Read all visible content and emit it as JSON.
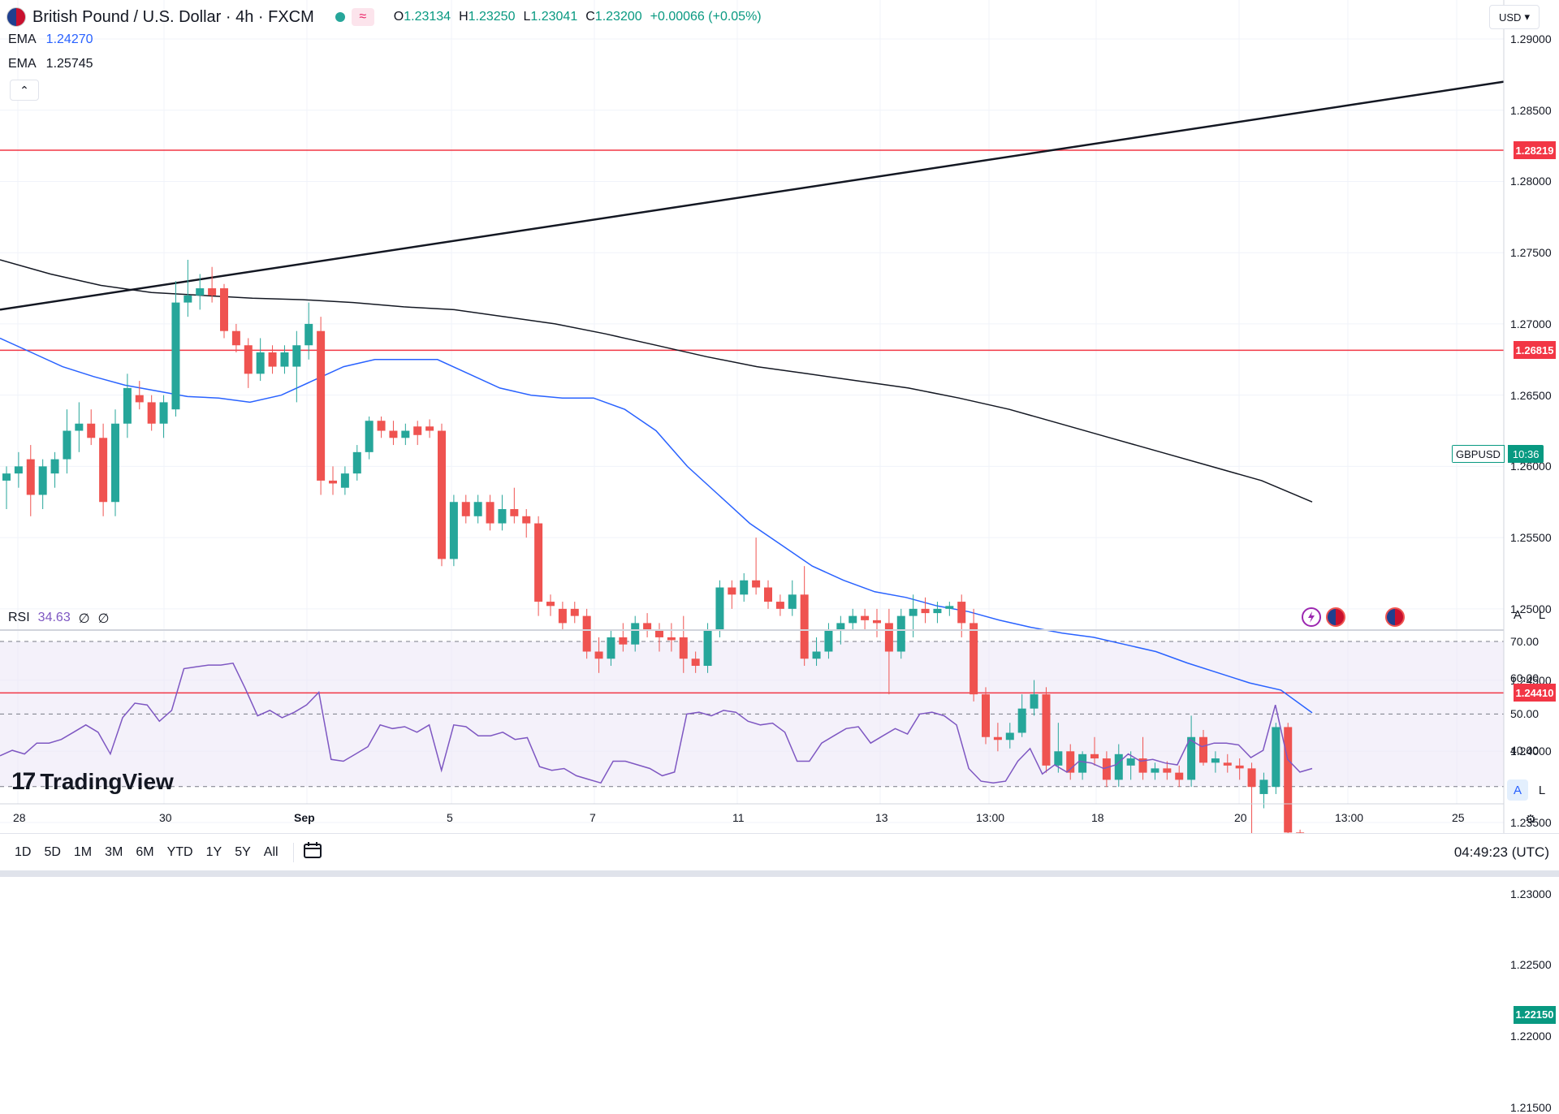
{
  "header": {
    "symbol_title": "British Pound / U.S. Dollar · 4h · FXCM",
    "open_label": "O",
    "open": "1.23134",
    "high_label": "H",
    "high": "1.23250",
    "low_label": "L",
    "low": "1.23041",
    "close_label": "C",
    "close": "1.23200",
    "change": "+0.00066 (+0.05%)"
  },
  "indicators": {
    "ema1_label": "EMA",
    "ema1_value": "1.24270",
    "ema2_label": "EMA",
    "ema2_value": "1.25745",
    "rsi_label": "RSI",
    "rsi_value": "34.63",
    "rsi_extra1": "∅",
    "rsi_extra2": "∅"
  },
  "currency_button": "USD",
  "symbol_tag": {
    "name": "GBPUSD",
    "countdown": "10:36"
  },
  "price_axis": {
    "ticks": [
      "1.29000",
      "1.28500",
      "1.28000",
      "1.27500",
      "1.27000",
      "1.26500",
      "1.26000",
      "1.25500",
      "1.25000",
      "1.24500",
      "1.24000",
      "1.23500",
      "1.23000",
      "1.22500",
      "1.22000",
      "1.21500"
    ]
  },
  "rsi_axis": {
    "ticks": [
      "70.00",
      "60.00",
      "50.00",
      "40.00"
    ]
  },
  "time_axis": {
    "labels": [
      "28",
      "30",
      "Sep",
      "5",
      "7",
      "11",
      "13",
      "13:00",
      "18",
      "20",
      "13:00",
      "25"
    ]
  },
  "level_labels": [
    "1.28219",
    "1.26815",
    "1.24410",
    "1.22150"
  ],
  "scale_buttons": {
    "auto": "A",
    "log": "L"
  },
  "range_buttons": [
    "1D",
    "5D",
    "1M",
    "3M",
    "6M",
    "YTD",
    "1Y",
    "5Y",
    "All"
  ],
  "clock": "04:49:23 (UTC)",
  "branding": "TradingView",
  "colors": {
    "up": "#26a69a",
    "down": "#ef5350",
    "ema_fast": "#2962ff",
    "ema_slow": "#131722",
    "level_red": "#f23645",
    "level_green": "#089981",
    "rsi": "#7e57c2",
    "rsi_bg": "#ede7f6"
  },
  "chart_data": {
    "type": "candlestick",
    "symbol": "GBPUSD",
    "timeframe": "4h",
    "ylim": [
      1.2115,
      1.2915
    ],
    "candles": [
      [
        1.259,
        1.26,
        1.257,
        1.2595
      ],
      [
        1.2595,
        1.261,
        1.2585,
        1.26
      ],
      [
        1.2605,
        1.2615,
        1.2565,
        1.258
      ],
      [
        1.258,
        1.2605,
        1.257,
        1.26
      ],
      [
        1.2595,
        1.261,
        1.2585,
        1.2605
      ],
      [
        1.2605,
        1.264,
        1.2595,
        1.2625
      ],
      [
        1.2625,
        1.2645,
        1.261,
        1.263
      ],
      [
        1.263,
        1.264,
        1.2615,
        1.262
      ],
      [
        1.262,
        1.263,
        1.2565,
        1.2575
      ],
      [
        1.2575,
        1.264,
        1.2565,
        1.263
      ],
      [
        1.263,
        1.2665,
        1.262,
        1.2655
      ],
      [
        1.265,
        1.266,
        1.264,
        1.2645
      ],
      [
        1.2645,
        1.265,
        1.2625,
        1.263
      ],
      [
        1.263,
        1.265,
        1.262,
        1.2645
      ],
      [
        1.264,
        1.273,
        1.2635,
        1.2715
      ],
      [
        1.2715,
        1.2745,
        1.2705,
        1.272
      ],
      [
        1.272,
        1.2735,
        1.271,
        1.2725
      ],
      [
        1.2725,
        1.274,
        1.2715,
        1.272
      ],
      [
        1.2725,
        1.2728,
        1.269,
        1.2695
      ],
      [
        1.2695,
        1.27,
        1.268,
        1.2685
      ],
      [
        1.2685,
        1.269,
        1.2655,
        1.2665
      ],
      [
        1.2665,
        1.269,
        1.266,
        1.268
      ],
      [
        1.268,
        1.2685,
        1.2665,
        1.267
      ],
      [
        1.267,
        1.2685,
        1.2665,
        1.268
      ],
      [
        1.267,
        1.2695,
        1.2645,
        1.2685
      ],
      [
        1.2685,
        1.2715,
        1.2675,
        1.27
      ],
      [
        1.2695,
        1.2705,
        1.258,
        1.259
      ],
      [
        1.259,
        1.26,
        1.258,
        1.2588
      ],
      [
        1.2585,
        1.26,
        1.258,
        1.2595
      ],
      [
        1.2595,
        1.2615,
        1.259,
        1.261
      ],
      [
        1.261,
        1.2635,
        1.2605,
        1.2632
      ],
      [
        1.2632,
        1.2635,
        1.262,
        1.2625
      ],
      [
        1.2625,
        1.2632,
        1.2615,
        1.262
      ],
      [
        1.262,
        1.263,
        1.2615,
        1.2625
      ],
      [
        1.2628,
        1.2632,
        1.2615,
        1.2622
      ],
      [
        1.2628,
        1.2633,
        1.262,
        1.2625
      ],
      [
        1.2625,
        1.263,
        1.253,
        1.2535
      ],
      [
        1.2535,
        1.258,
        1.253,
        1.2575
      ],
      [
        1.2575,
        1.258,
        1.256,
        1.2565
      ],
      [
        1.2565,
        1.258,
        1.256,
        1.2575
      ],
      [
        1.2575,
        1.258,
        1.2555,
        1.256
      ],
      [
        1.256,
        1.258,
        1.2555,
        1.257
      ],
      [
        1.257,
        1.2585,
        1.256,
        1.2565
      ],
      [
        1.2565,
        1.257,
        1.255,
        1.256
      ],
      [
        1.256,
        1.2565,
        1.2495,
        1.2505
      ],
      [
        1.2505,
        1.251,
        1.2495,
        1.2502
      ],
      [
        1.25,
        1.2505,
        1.2485,
        1.249
      ],
      [
        1.25,
        1.2505,
        1.249,
        1.2495
      ],
      [
        1.2495,
        1.25,
        1.2465,
        1.247
      ],
      [
        1.247,
        1.248,
        1.2455,
        1.2465
      ],
      [
        1.2465,
        1.2485,
        1.246,
        1.248
      ],
      [
        1.248,
        1.249,
        1.247,
        1.2475
      ],
      [
        1.2475,
        1.2495,
        1.247,
        1.249
      ],
      [
        1.249,
        1.2497,
        1.248,
        1.2485
      ],
      [
        1.2485,
        1.249,
        1.247,
        1.248
      ],
      [
        1.248,
        1.249,
        1.247,
        1.2478
      ],
      [
        1.248,
        1.2495,
        1.2455,
        1.2465
      ],
      [
        1.2465,
        1.247,
        1.2455,
        1.246
      ],
      [
        1.246,
        1.249,
        1.2455,
        1.2485
      ],
      [
        1.2485,
        1.252,
        1.248,
        1.2515
      ],
      [
        1.2515,
        1.252,
        1.25,
        1.251
      ],
      [
        1.251,
        1.2525,
        1.2505,
        1.252
      ],
      [
        1.252,
        1.255,
        1.251,
        1.2515
      ],
      [
        1.2515,
        1.252,
        1.25,
        1.2505
      ],
      [
        1.2505,
        1.251,
        1.2495,
        1.25
      ],
      [
        1.25,
        1.252,
        1.2495,
        1.251
      ],
      [
        1.251,
        1.253,
        1.246,
        1.2465
      ],
      [
        1.2465,
        1.248,
        1.246,
        1.247
      ],
      [
        1.247,
        1.249,
        1.2465,
        1.2485
      ],
      [
        1.2485,
        1.2495,
        1.2475,
        1.249
      ],
      [
        1.249,
        1.25,
        1.2485,
        1.2495
      ],
      [
        1.2495,
        1.25,
        1.2485,
        1.2492
      ],
      [
        1.2492,
        1.25,
        1.248,
        1.249
      ],
      [
        1.249,
        1.25,
        1.244,
        1.247
      ],
      [
        1.247,
        1.25,
        1.2465,
        1.2495
      ],
      [
        1.2495,
        1.251,
        1.248,
        1.25
      ],
      [
        1.25,
        1.2508,
        1.249,
        1.2497
      ],
      [
        1.2497,
        1.2505,
        1.249,
        1.25
      ],
      [
        1.25,
        1.2505,
        1.2495,
        1.2502
      ],
      [
        1.2505,
        1.251,
        1.248,
        1.249
      ],
      [
        1.249,
        1.25,
        1.2435,
        1.244
      ],
      [
        1.244,
        1.2445,
        1.2405,
        1.241
      ],
      [
        1.241,
        1.242,
        1.24,
        1.2408
      ],
      [
        1.2408,
        1.242,
        1.2402,
        1.2413
      ],
      [
        1.2413,
        1.244,
        1.241,
        1.243
      ],
      [
        1.243,
        1.245,
        1.2425,
        1.244
      ],
      [
        1.244,
        1.2445,
        1.2385,
        1.239
      ],
      [
        1.239,
        1.242,
        1.2385,
        1.24
      ],
      [
        1.24,
        1.2405,
        1.238,
        1.2385
      ],
      [
        1.2385,
        1.24,
        1.238,
        1.2398
      ],
      [
        1.2398,
        1.241,
        1.239,
        1.2395
      ],
      [
        1.2395,
        1.24,
        1.2375,
        1.238
      ],
      [
        1.238,
        1.2405,
        1.2375,
        1.2398
      ],
      [
        1.239,
        1.24,
        1.238,
        1.2395
      ],
      [
        1.2395,
        1.241,
        1.238,
        1.2385
      ],
      [
        1.2385,
        1.2392,
        1.238,
        1.2388
      ],
      [
        1.2388,
        1.2393,
        1.238,
        1.2385
      ],
      [
        1.2385,
        1.239,
        1.2375,
        1.238
      ],
      [
        1.238,
        1.2425,
        1.2375,
        1.241
      ],
      [
        1.241,
        1.2415,
        1.239,
        1.2392
      ],
      [
        1.2392,
        1.24,
        1.2385,
        1.2395
      ],
      [
        1.2392,
        1.2398,
        1.2385,
        1.239
      ],
      [
        1.239,
        1.2395,
        1.238,
        1.2388
      ],
      [
        1.2388,
        1.2392,
        1.2335,
        1.2375
      ],
      [
        1.237,
        1.2385,
        1.236,
        1.238
      ],
      [
        1.2375,
        1.242,
        1.237,
        1.2417
      ],
      [
        1.2417,
        1.242,
        1.234,
        1.2343
      ],
      [
        1.2343,
        1.2345,
        1.231,
        1.2313
      ],
      [
        1.2313,
        1.2325,
        1.2304,
        1.232
      ]
    ],
    "ema_fast": [
      1.269,
      1.268,
      1.267,
      1.2663,
      1.2657,
      1.2653,
      1.2649,
      1.2648,
      1.2645,
      1.265,
      1.266,
      1.267,
      1.2675,
      1.2675,
      1.2675,
      1.2665,
      1.2655,
      1.265,
      1.2648,
      1.2648,
      1.264,
      1.2625,
      1.26,
      1.258,
      1.256,
      1.2545,
      1.253,
      1.252,
      1.2512,
      1.2508,
      1.2502,
      1.2498,
      1.2492,
      1.2487,
      1.2483,
      1.248,
      1.2475,
      1.247,
      1.2462,
      1.2455,
      1.2448,
      1.2443,
      1.2427
    ],
    "ema_slow": [
      1.2745,
      1.2735,
      1.2727,
      1.2722,
      1.272,
      1.2718,
      1.2717,
      1.2715,
      1.2712,
      1.271,
      1.2705,
      1.27,
      1.2693,
      1.2685,
      1.2677,
      1.267,
      1.2665,
      1.266,
      1.2655,
      1.2648,
      1.264,
      1.263,
      1.262,
      1.261,
      1.26,
      1.259,
      1.2575
    ],
    "trendline": {
      "x_start": "before Aug 28",
      "y_start": 1.271,
      "y_end": 1.287
    },
    "horizontal_levels": [
      {
        "price": 1.28219,
        "color": "red"
      },
      {
        "price": 1.26815,
        "color": "red"
      },
      {
        "price": 1.2441,
        "color": "red"
      },
      {
        "price": 1.2215,
        "color": "green"
      }
    ],
    "rsi": {
      "ylim": [
        30,
        72
      ],
      "levels": [
        70,
        50,
        30
      ],
      "values": [
        38.5,
        40,
        39,
        42,
        42,
        43,
        45,
        47,
        45,
        39,
        49,
        53,
        52.5,
        48,
        51,
        62.5,
        63,
        63.5,
        63.5,
        64,
        57,
        49.5,
        51,
        49,
        50.5,
        52.5,
        56,
        37.5,
        37,
        39,
        41,
        47,
        46,
        46.5,
        45,
        47,
        34.5,
        47,
        46.5,
        44,
        44,
        45,
        43,
        43.5,
        35.5,
        34.5,
        35,
        33,
        32,
        31,
        37,
        37,
        36,
        35,
        33,
        34,
        50,
        50.5,
        49.5,
        51,
        50.5,
        48,
        47,
        47.5,
        45,
        37,
        37,
        42,
        44,
        46,
        46.5,
        42,
        44,
        46,
        44.5,
        50,
        50.5,
        49.5,
        47,
        35,
        31.5,
        31,
        31.5,
        37,
        40.5,
        33.5,
        36,
        34,
        37,
        36.5,
        35,
        36,
        39,
        37,
        37.5,
        36.5,
        36,
        43,
        41,
        42,
        42,
        41.5,
        38,
        40,
        52.5,
        37.5,
        34,
        35
      ]
    }
  }
}
